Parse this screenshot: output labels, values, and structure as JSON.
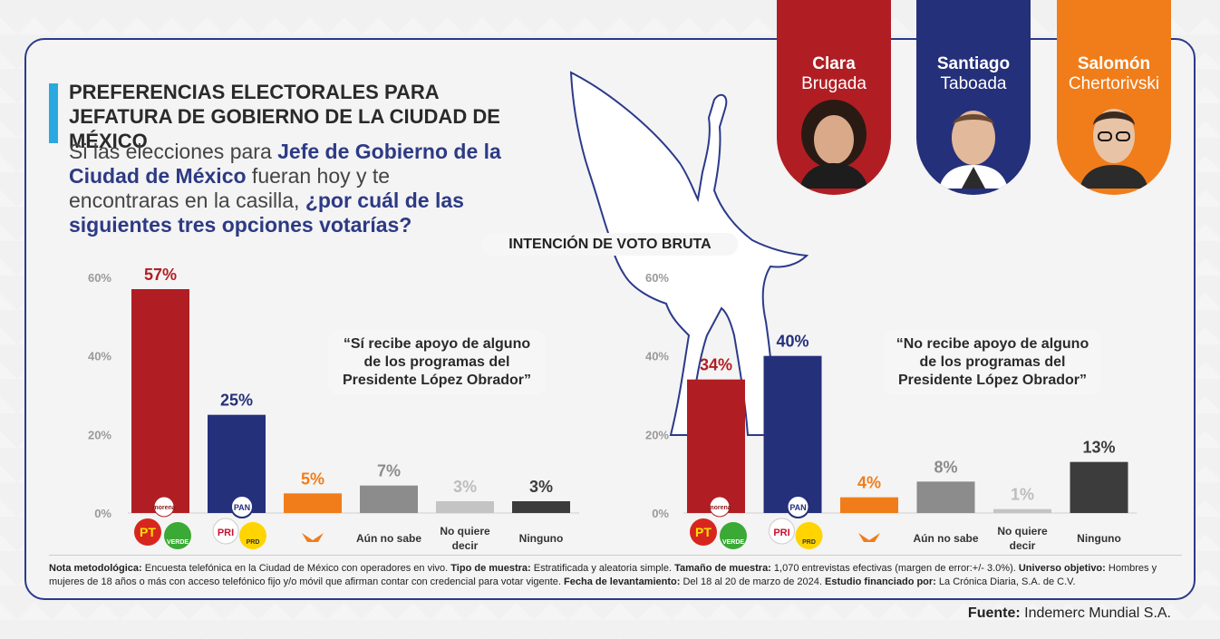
{
  "title_line1": "PREFERENCIAS ELECTORALES PARA",
  "title_line2": "JEFATURA DE GOBIERNO DE LA CIUDAD DE MÉXICO",
  "question": {
    "p1": "Si las elecciones para ",
    "h1": "Jefe de Gobierno de la Ciudad de México",
    "p2": " fueran hoy y te encontraras en la casilla, ",
    "h2": "¿por cuál de las siguientes tres opciones votarías?"
  },
  "banner": "INTENCIÓN DE VOTO BRUTA",
  "candidates": [
    {
      "first": "Clara",
      "last": "Brugada",
      "color": "#b01e23"
    },
    {
      "first": "Santiago",
      "last": "Taboada",
      "color": "#25307a"
    },
    {
      "first": "Salomón",
      "last": "Chertorivski",
      "color": "#f07d1a"
    }
  ],
  "party_logos": {
    "morena": "morena",
    "pt": "PT",
    "verde": "VERDE",
    "pri": "PRI",
    "pan": "PAN",
    "prd": "PRD"
  },
  "chart_data": [
    {
      "type": "bar",
      "quote": "“Sí recibe apoyo de alguno de los programas del Presidente López Obrador”",
      "categories": [
        "Clara Brugada",
        "Santiago Taboada",
        "Salomón Chertorivski",
        "Aún no sabe",
        "No quiere decir",
        "Ninguno"
      ],
      "values": [
        57,
        25,
        5,
        7,
        3,
        3
      ],
      "value_labels": [
        "57%",
        "25%",
        "5%",
        "7%",
        "3%",
        "3%"
      ],
      "colors": [
        "#b01e23",
        "#25307a",
        "#f07d1a",
        "#8c8c8c",
        "#c4c4c4",
        "#3c3c3c"
      ],
      "label_colors": [
        "#b01e23",
        "#25307a",
        "#f07d1a",
        "#8c8c8c",
        "#bdbdbd",
        "#3c3c3c"
      ],
      "ylim": [
        0,
        60
      ],
      "yticks": [
        "0%",
        "20%",
        "40%",
        "60%"
      ],
      "ytick_values": [
        0,
        20,
        40,
        60
      ]
    },
    {
      "type": "bar",
      "quote": "“No recibe apoyo de alguno de los programas del Presidente López Obrador”",
      "categories": [
        "Clara Brugada",
        "Santiago Taboada",
        "Salomón Chertorivski",
        "Aún no sabe",
        "No quiere decir",
        "Ninguno"
      ],
      "values": [
        34,
        40,
        4,
        8,
        1,
        13
      ],
      "value_labels": [
        "34%",
        "40%",
        "4%",
        "8%",
        "1%",
        "13%"
      ],
      "colors": [
        "#b01e23",
        "#25307a",
        "#f07d1a",
        "#8c8c8c",
        "#c4c4c4",
        "#3c3c3c"
      ],
      "label_colors": [
        "#b01e23",
        "#25307a",
        "#f07d1a",
        "#8c8c8c",
        "#bdbdbd",
        "#3c3c3c"
      ],
      "ylim": [
        0,
        60
      ],
      "yticks": [
        "0%",
        "20%",
        "40%",
        "60%"
      ],
      "ytick_values": [
        0,
        20,
        40,
        60
      ]
    }
  ],
  "xlabels": {
    "aun": "Aún no sabe",
    "noquiere1": "No quiere",
    "noquiere2": "decir",
    "ninguno": "Ninguno"
  },
  "note": {
    "k1": "Nota metodológica:",
    "v1": " Encuesta telefónica en la Ciudad de México con operadores en vivo. ",
    "k2": "Tipo de muestra:",
    "v2": " Estratificada y aleatoria simple. ",
    "k3": "Tamaño de muestra:",
    "v3": " 1,070 entrevistas efectivas (margen de error:+/- 3.0%). ",
    "k4": "Universo objetivo:",
    "v4": " Hombres y mujeres de 18 años o más con acceso telefónico fijo y/o móvil que afirman contar con credencial para votar vigente. ",
    "k5": "Fecha de levantamiento:",
    "v5": " Del 18 al 20 de marzo de 2024. ",
    "k6": "Estudio financiado por:",
    "v6": " La Crónica Diaria, S.A. de C.V."
  },
  "source": {
    "key": "Fuente:",
    "value": " Indemerc Mundial S.A."
  }
}
